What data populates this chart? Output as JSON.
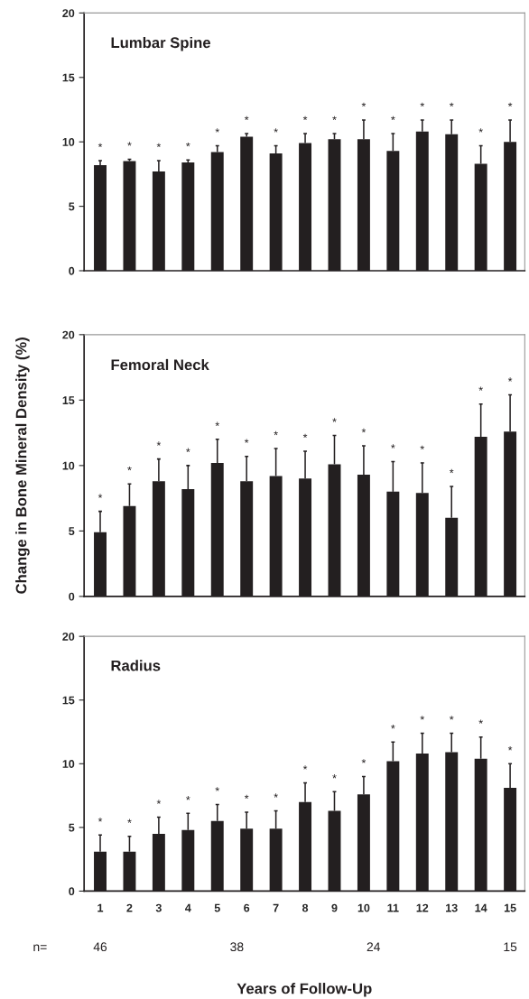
{
  "chart_data": [
    {
      "type": "bar",
      "title": "Lumbar Spine",
      "categories": [
        "1",
        "2",
        "3",
        "4",
        "5",
        "6",
        "7",
        "8",
        "9",
        "10",
        "11",
        "12",
        "13",
        "14",
        "15"
      ],
      "series": [
        {
          "color": "#231f20",
          "values": [
            8.2,
            8.5,
            7.7,
            8.4,
            9.2,
            10.4,
            9.1,
            9.9,
            10.2,
            10.2,
            9.3,
            10.8,
            10.6,
            8.3,
            10.0
          ],
          "errors": [
            [
              8.2,
              8.55
            ],
            [
              8.5,
              8.65
            ],
            [
              7.7,
              8.55
            ],
            [
              8.4,
              8.6
            ],
            [
              9.2,
              9.7
            ],
            [
              10.4,
              10.65
            ],
            [
              9.1,
              9.7
            ],
            [
              9.9,
              10.65
            ],
            [
              10.2,
              10.65
            ],
            [
              10.2,
              11.7
            ],
            [
              9.3,
              10.65
            ],
            [
              10.8,
              11.7
            ],
            [
              10.6,
              11.7
            ],
            [
              8.3,
              9.7
            ],
            [
              10.0,
              11.7
            ]
          ]
        }
      ],
      "ylim": [
        0,
        20
      ],
      "yticks": [
        0,
        5,
        10,
        15,
        20
      ],
      "tick_labels": "y",
      "legend": false,
      "grid": false,
      "annotations": [
        "*",
        "*",
        "*",
        "*",
        "*",
        "*",
        "*",
        "*",
        "*",
        "*",
        "*",
        "*",
        "*",
        "*",
        "*"
      ]
    },
    {
      "type": "bar",
      "title": "Femoral Neck",
      "ylabel": "Change in Bone Mineral Density (%)",
      "categories": [
        "1",
        "2",
        "3",
        "4",
        "5",
        "6",
        "7",
        "8",
        "9",
        "10",
        "11",
        "12",
        "13",
        "14",
        "15"
      ],
      "series": [
        {
          "color": "#231f20",
          "values": [
            4.9,
            6.9,
            8.8,
            8.2,
            10.2,
            8.8,
            9.2,
            9.0,
            10.1,
            9.3,
            8.0,
            7.9,
            6.0,
            12.2,
            12.6
          ],
          "errors": [
            [
              4.9,
              6.5
            ],
            [
              6.9,
              8.6
            ],
            [
              8.8,
              10.5
            ],
            [
              8.2,
              10.0
            ],
            [
              10.2,
              12.0
            ],
            [
              8.8,
              10.7
            ],
            [
              9.2,
              11.3
            ],
            [
              9.0,
              11.1
            ],
            [
              10.1,
              12.3
            ],
            [
              9.3,
              11.5
            ],
            [
              8.0,
              10.3
            ],
            [
              7.9,
              10.2
            ],
            [
              6.0,
              8.4
            ],
            [
              12.2,
              14.7
            ],
            [
              12.6,
              15.4
            ]
          ]
        }
      ],
      "ylim": [
        0,
        20
      ],
      "yticks": [
        0,
        5,
        10,
        15,
        20
      ],
      "tick_labels": "y",
      "legend": false,
      "grid": false,
      "annotations": [
        "*",
        "*",
        "*",
        "*",
        "*",
        "*",
        "*",
        "*",
        "*",
        "*",
        "*",
        "*",
        "*",
        "*",
        "*"
      ]
    },
    {
      "type": "bar",
      "title": "Radius",
      "xlabel": "Years of Follow-Up",
      "categories": [
        "1",
        "2",
        "3",
        "4",
        "5",
        "6",
        "7",
        "8",
        "9",
        "10",
        "11",
        "12",
        "13",
        "14",
        "15"
      ],
      "series": [
        {
          "color": "#231f20",
          "values": [
            3.1,
            3.1,
            4.5,
            4.8,
            5.5,
            4.9,
            4.9,
            7.0,
            6.3,
            7.6,
            10.2,
            10.8,
            10.9,
            10.4,
            8.1
          ],
          "errors": [
            [
              3.1,
              4.4
            ],
            [
              3.1,
              4.3
            ],
            [
              4.5,
              5.8
            ],
            [
              4.8,
              6.1
            ],
            [
              5.5,
              6.8
            ],
            [
              4.9,
              6.2
            ],
            [
              4.9,
              6.3
            ],
            [
              7.0,
              8.5
            ],
            [
              6.3,
              7.8
            ],
            [
              7.6,
              9.0
            ],
            [
              10.2,
              11.7
            ],
            [
              10.8,
              12.4
            ],
            [
              10.9,
              12.4
            ],
            [
              10.4,
              12.1
            ],
            [
              8.1,
              10.0
            ]
          ]
        }
      ],
      "ylim": [
        0,
        20
      ],
      "yticks": [
        0,
        5,
        10,
        15,
        20
      ],
      "legend": false,
      "grid": false,
      "annotations": [
        "*",
        "*",
        "*",
        "*",
        "*",
        "*",
        "*",
        "*",
        "*",
        "*",
        "*",
        "*",
        "*",
        "*",
        "*",
        "n=",
        "46",
        "38",
        "24",
        "15"
      ]
    }
  ]
}
